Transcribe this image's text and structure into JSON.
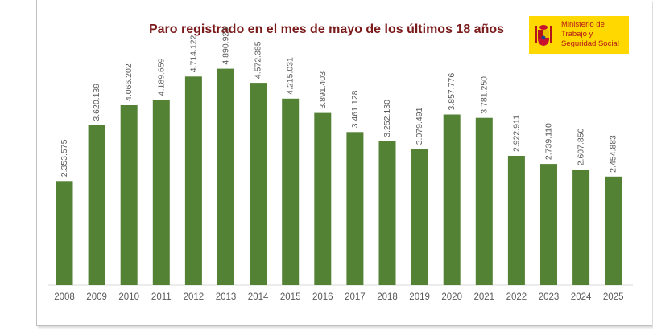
{
  "logo": {
    "lines": [
      "Ministerio de",
      "Trabajo y",
      "Seguridad Social"
    ],
    "colors": {
      "background": "#ffd800",
      "text": "#b3131b"
    }
  },
  "chart_data": {
    "type": "bar",
    "title": "Paro registrado en el mes de mayo de los últimos 18 años",
    "categories": [
      "2008",
      "2009",
      "2010",
      "2011",
      "2012",
      "2013",
      "2014",
      "2015",
      "2016",
      "2017",
      "2018",
      "2019",
      "2020",
      "2021",
      "2022",
      "2023",
      "2024",
      "2025"
    ],
    "values": [
      2353575,
      3620139,
      4066202,
      4189659,
      4714122,
      4890928,
      4572385,
      4215031,
      3891403,
      3461128,
      3252130,
      3079491,
      3857776,
      3781250,
      2922911,
      2739110,
      2607850,
      2454883
    ],
    "labels": [
      "2.353.575",
      "3.620.139",
      "4.066.202",
      "4.189.659",
      "4.714.122",
      "4.890.928",
      "4.572.385",
      "4.215.031",
      "3.891.403",
      "3.461.128",
      "3.252.130",
      "3.079.491",
      "3.857.776",
      "3.781.250",
      "2.922.911",
      "2.739.110",
      "2.607.850",
      "2.454.883"
    ],
    "ylim": [
      0,
      5500000
    ],
    "grid": false,
    "colors": {
      "bar": "#548235",
      "title": "#7b1a1a",
      "text": "#595959"
    }
  }
}
